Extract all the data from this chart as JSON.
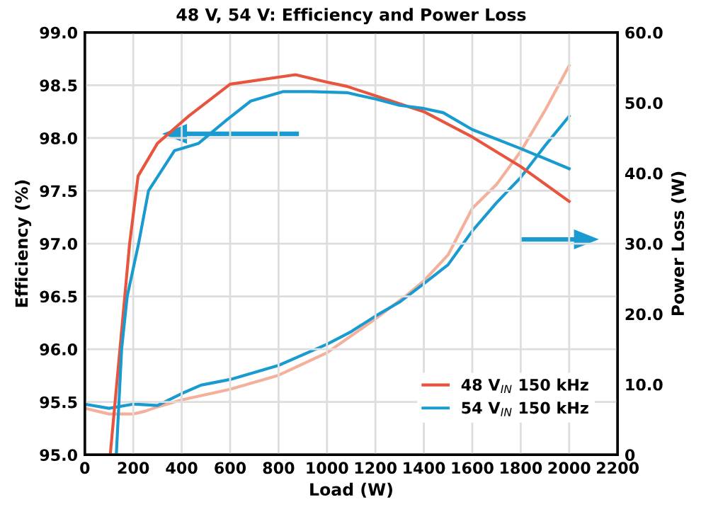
{
  "chart_data": {
    "type": "line",
    "title": "48 V, 54 V: Efficiency and Power Loss",
    "xlabel": "Load (W)",
    "ylabel": "Efficiency (%)",
    "y2label": "Power Loss (W)",
    "xlim": [
      0,
      2200
    ],
    "xticks": [
      0,
      200,
      400,
      600,
      800,
      1000,
      1200,
      1400,
      1600,
      1800,
      2000,
      2200
    ],
    "ylim": [
      95,
      99
    ],
    "yticks": [
      {
        "value": 95,
        "label": "95.0"
      },
      {
        "value": 95.5,
        "label": "95.5"
      },
      {
        "value": 96,
        "label": "96.0"
      },
      {
        "value": 96.5,
        "label": "96.5"
      },
      {
        "value": 97,
        "label": "97.0"
      },
      {
        "value": 97.5,
        "label": "97.5"
      },
      {
        "value": 98,
        "label": "98.0"
      },
      {
        "value": 98.5,
        "label": "98.5"
      },
      {
        "value": 99,
        "label": "99.0"
      }
    ],
    "y2lim": [
      0,
      60
    ],
    "y2ticks": [
      0,
      {
        "value": 10,
        "label": "10.0"
      },
      {
        "value": 20,
        "label": "20.0"
      },
      {
        "value": 30,
        "label": "30.0"
      },
      {
        "value": 40,
        "label": "40.0"
      },
      {
        "value": 50,
        "label": "50.0"
      },
      {
        "value": 60,
        "label": "60.0"
      }
    ],
    "grid": true,
    "legend": "bottom right",
    "marker": "none",
    "line_style": "solid",
    "series": [
      {
        "name": "48 V$_{IN}$ 150 kHz",
        "color": "#e8553e",
        "x": [
          105,
          145,
          185,
          220,
          300,
          430,
          600,
          870,
          1000,
          1082,
          1200,
          1400,
          1600,
          1800,
          2000
        ],
        "values": [
          95.0,
          96.0,
          97.0,
          97.64,
          97.95,
          98.21,
          98.51,
          98.6,
          98.53,
          98.49,
          98.4,
          98.25,
          98.01,
          97.73,
          97.4
        ]
      },
      {
        "name": "54 V$_{IN}$ 150 kHz",
        "color": "#1a9bd0",
        "x": [
          130,
          152,
          175,
          222,
          263,
          370,
          470,
          585,
          685,
          820,
          936,
          1082,
          1200,
          1300,
          1400,
          1480,
          1600,
          1800,
          2000
        ],
        "values": [
          95.0,
          96.0,
          96.5,
          97.0,
          97.5,
          97.88,
          97.95,
          98.17,
          98.35,
          98.44,
          98.44,
          98.43,
          98.37,
          98.31,
          98.28,
          98.24,
          98.08,
          97.9,
          97.71
        ]
      },
      {
        "axis": "y2",
        "color": "#f4b09a",
        "x": [
          0,
          100,
          200,
          250,
          300,
          400,
          600,
          800,
          1000,
          1100,
          1200,
          1330,
          1400,
          1500,
          1600,
          1700,
          1800,
          1900,
          2000
        ],
        "values": [
          6.6,
          5.8,
          5.8,
          6.2,
          6.8,
          7.8,
          9.3,
          11.3,
          14.5,
          16.9,
          19.3,
          22.7,
          24.7,
          28.4,
          35.0,
          38.4,
          43.1,
          48.9,
          55.3
        ]
      },
      {
        "axis": "y2",
        "color": "#1a9bd0",
        "x": [
          0,
          100,
          200,
          300,
          400,
          480,
          600,
          800,
          1000,
          1100,
          1200,
          1300,
          1400,
          1500,
          1550,
          1600,
          1700,
          1800,
          1900,
          2000
        ],
        "values": [
          7.2,
          6.6,
          7.2,
          7.0,
          8.7,
          9.9,
          10.7,
          12.7,
          15.7,
          17.5,
          19.7,
          21.7,
          24.3,
          27.0,
          29.4,
          31.8,
          35.8,
          39.4,
          43.9,
          48.1
        ]
      }
    ]
  }
}
